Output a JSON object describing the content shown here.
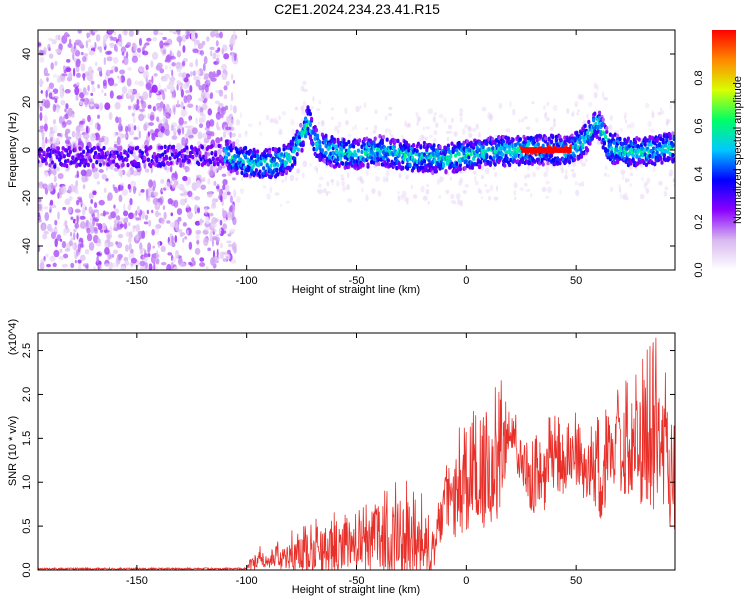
{
  "title": "C2E1.2024.234.23.41.R15",
  "chart_data": [
    {
      "type": "heatmap",
      "xlabel": "Height of straight line (km)",
      "ylabel": "Frequency (Hz)",
      "xlim": [
        -195,
        95
      ],
      "ylim": [
        -50,
        50
      ],
      "xticks": [
        -150,
        -100,
        -50,
        0,
        50
      ],
      "yticks": [
        -40,
        -20,
        0,
        20,
        40
      ],
      "colorbar": {
        "label": "Normalized spectral amplitude",
        "range": [
          0.0,
          1.0
        ],
        "ticks": [
          0.0,
          0.2,
          0.4,
          0.6,
          0.8
        ],
        "tick_labels": [
          "0.0",
          "0.2",
          "0.4",
          "0.6",
          "0.8"
        ],
        "colormap": [
          "#ffffff",
          "#d8b8f0",
          "#8a00ff",
          "#0000ff",
          "#00c8ff",
          "#00ff66",
          "#d8ff00",
          "#ff8800",
          "#ff0000"
        ]
      },
      "ridge": {
        "x": [
          -195,
          -150,
          -110,
          -100,
          -90,
          -80,
          -75,
          -72,
          -68,
          -60,
          -50,
          -40,
          -30,
          -20,
          -10,
          0,
          10,
          25,
          35,
          48,
          55,
          60,
          65,
          75,
          95
        ],
        "y": [
          -3,
          -3,
          -2,
          -5,
          -6,
          -3,
          5,
          12,
          2,
          -1,
          -2,
          0,
          -2,
          -3,
          -4,
          -2,
          -1,
          0,
          0,
          0,
          5,
          12,
          1,
          -1,
          1
        ]
      }
    },
    {
      "type": "line",
      "xlabel": "Height of straight line (km)",
      "ylabel": "SNR (10 * v/v)",
      "y_multiplier": "(x10^4)",
      "xlim": [
        -195,
        95
      ],
      "ylim": [
        0.0,
        2.7
      ],
      "xticks": [
        -150,
        -100,
        -50,
        0,
        50
      ],
      "yticks": [
        0.0,
        0.5,
        1.0,
        1.5,
        2.0,
        2.5
      ],
      "ytick_labels": [
        "0.0",
        "0.5",
        "1.0",
        "1.5",
        "2.0",
        "2.5"
      ],
      "color": "#e8302a",
      "envelope": {
        "x": [
          -195,
          -110,
          -100,
          -95,
          -90,
          -80,
          -70,
          -60,
          -50,
          -40,
          -30,
          -20,
          -15,
          -10,
          -5,
          0,
          5,
          10,
          15,
          20,
          25,
          30,
          35,
          40,
          45,
          50,
          55,
          60,
          65,
          70,
          75,
          80,
          85,
          90,
          95
        ],
        "mean": [
          0.01,
          0.02,
          0.03,
          0.1,
          0.12,
          0.18,
          0.22,
          0.28,
          0.32,
          0.38,
          0.35,
          0.3,
          0.25,
          0.75,
          0.85,
          0.95,
          1.0,
          1.05,
          1.3,
          1.65,
          1.15,
          1.0,
          1.05,
          1.3,
          1.2,
          1.3,
          1.1,
          1.0,
          1.3,
          1.45,
          1.35,
          1.5,
          1.4,
          1.45,
          1.2
        ],
        "max": [
          0.02,
          0.03,
          0.05,
          0.3,
          0.25,
          0.45,
          0.58,
          0.7,
          0.75,
          1.0,
          1.08,
          0.9,
          0.6,
          1.25,
          1.6,
          1.7,
          1.9,
          1.8,
          2.3,
          2.05,
          1.5,
          1.5,
          1.65,
          1.85,
          1.7,
          1.8,
          1.6,
          1.8,
          1.9,
          2.2,
          2.3,
          2.6,
          2.7,
          2.5,
          2.45
        ]
      }
    }
  ]
}
